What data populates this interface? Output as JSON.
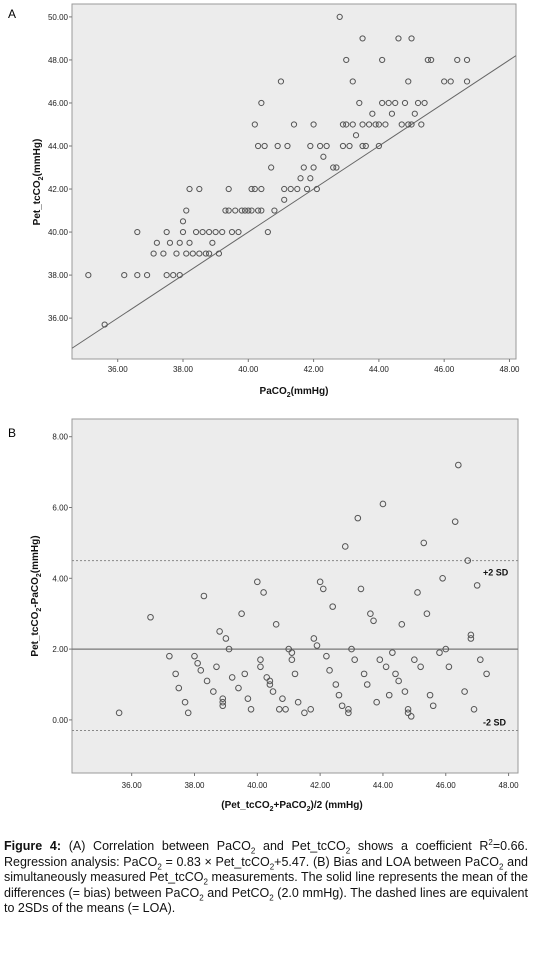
{
  "panel_a_letter": "A",
  "panel_b_letter": "B",
  "caption": {
    "label": "Figure 4:",
    "text": "(A) Correlation between PaCO2 and Pet_tcCO2 shows a coefficient R2=0.66. Regression analysis: PaCO2 = 0.83 × Pet_tcCO2+5.47. (B) Bias and LOA between PaCO2 and simultaneously measured Pet_tcCO2 measurements. The solid line represents the mean of the differences (= bias) between PaCO2 and PetCO2 (2.0 mmHg). The dashed lines are equivalent to 2SDs of the means (= LOA)."
  },
  "chart_data": [
    {
      "type": "scatter",
      "panel": "A",
      "xlabel": "PaCO2(mmHg)",
      "ylabel": "Pet_tcCO2(mmHg)",
      "xlim": [
        34.6,
        48.2
      ],
      "ylim": [
        34.1,
        50.6
      ],
      "xticks": [
        "36.00",
        "38.00",
        "40.00",
        "42.00",
        "44.00",
        "46.00",
        "48.00"
      ],
      "yticks": [
        "36.00",
        "38.00",
        "40.00",
        "42.00",
        "44.00",
        "46.00",
        "48.00",
        "50.00"
      ],
      "identity_line": true,
      "background": "#ececec",
      "marker_color": "#555555",
      "points": [
        [
          35.1,
          38.0
        ],
        [
          35.6,
          35.7
        ],
        [
          36.2,
          38.0
        ],
        [
          36.6,
          38.0
        ],
        [
          36.6,
          40.0
        ],
        [
          36.9,
          38.0
        ],
        [
          37.1,
          39.0
        ],
        [
          37.2,
          39.5
        ],
        [
          37.4,
          39.0
        ],
        [
          37.5,
          38.0
        ],
        [
          37.5,
          40.0
        ],
        [
          37.6,
          39.5
        ],
        [
          37.7,
          38.0
        ],
        [
          37.8,
          39.0
        ],
        [
          37.9,
          39.5
        ],
        [
          38.0,
          40.0
        ],
        [
          38.0,
          40.5
        ],
        [
          38.1,
          39.0
        ],
        [
          38.1,
          41.0
        ],
        [
          38.2,
          42.0
        ],
        [
          38.2,
          39.5
        ],
        [
          38.3,
          39.0
        ],
        [
          38.4,
          40.0
        ],
        [
          38.5,
          39.0
        ],
        [
          38.5,
          42.0
        ],
        [
          38.6,
          40.0
        ],
        [
          38.7,
          39.0
        ],
        [
          38.8,
          40.0
        ],
        [
          38.9,
          39.5
        ],
        [
          39.0,
          40.0
        ],
        [
          39.1,
          39.0
        ],
        [
          39.3,
          41.0
        ],
        [
          39.4,
          42.0
        ],
        [
          39.4,
          41.0
        ],
        [
          39.5,
          40.0
        ],
        [
          39.6,
          41.0
        ],
        [
          39.7,
          40.0
        ],
        [
          39.8,
          41.0
        ],
        [
          39.9,
          41.0
        ],
        [
          40.0,
          41.0
        ],
        [
          40.1,
          42.0
        ],
        [
          40.1,
          41.0
        ],
        [
          40.2,
          45.0
        ],
        [
          40.2,
          42.0
        ],
        [
          40.3,
          44.0
        ],
        [
          40.3,
          41.0
        ],
        [
          40.4,
          46.0
        ],
        [
          40.4,
          42.0
        ],
        [
          40.5,
          44.0
        ],
        [
          40.6,
          40.0
        ],
        [
          40.7,
          43.0
        ],
        [
          40.8,
          41.0
        ],
        [
          40.9,
          44.0
        ],
        [
          41.0,
          47.0
        ],
        [
          41.1,
          41.5
        ],
        [
          41.1,
          42.0
        ],
        [
          41.2,
          44.0
        ],
        [
          41.3,
          42.0
        ],
        [
          41.4,
          45.0
        ],
        [
          41.5,
          42.0
        ],
        [
          41.6,
          42.5
        ],
        [
          41.7,
          43.0
        ],
        [
          41.8,
          42.0
        ],
        [
          41.9,
          44.0
        ],
        [
          42.0,
          45.0
        ],
        [
          42.0,
          43.0
        ],
        [
          42.1,
          42.0
        ],
        [
          42.2,
          44.0
        ],
        [
          42.3,
          43.5
        ],
        [
          42.4,
          44.0
        ],
        [
          42.6,
          43.0
        ],
        [
          42.7,
          43.0
        ],
        [
          42.8,
          50.0
        ],
        [
          42.9,
          44.0
        ],
        [
          43.0,
          48.0
        ],
        [
          43.0,
          45.0
        ],
        [
          43.1,
          44.0
        ],
        [
          43.2,
          47.0
        ],
        [
          43.3,
          44.5
        ],
        [
          43.4,
          46.0
        ],
        [
          43.5,
          49.0
        ],
        [
          43.5,
          45.0
        ],
        [
          43.6,
          44.0
        ],
        [
          43.7,
          45.0
        ],
        [
          43.8,
          45.5
        ],
        [
          43.9,
          45.0
        ],
        [
          44.0,
          44.0
        ],
        [
          44.1,
          46.0
        ],
        [
          44.1,
          48.0
        ],
        [
          44.2,
          45.0
        ],
        [
          44.3,
          46.0
        ],
        [
          44.4,
          45.5
        ],
        [
          44.5,
          46.0
        ],
        [
          44.6,
          49.0
        ],
        [
          44.7,
          45.0
        ],
        [
          44.8,
          46.0
        ],
        [
          44.9,
          47.0
        ],
        [
          44.9,
          45.0
        ],
        [
          45.0,
          49.0
        ],
        [
          45.1,
          45.5
        ],
        [
          45.2,
          46.0
        ],
        [
          45.3,
          45.0
        ],
        [
          45.4,
          46.0
        ],
        [
          45.5,
          48.0
        ],
        [
          45.6,
          48.0
        ],
        [
          46.0,
          47.0
        ],
        [
          46.2,
          47.0
        ],
        [
          46.4,
          48.0
        ],
        [
          46.7,
          48.0
        ],
        [
          46.7,
          47.0
        ],
        [
          43.2,
          45.0
        ],
        [
          44.0,
          45.0
        ],
        [
          41.9,
          42.5
        ],
        [
          39.2,
          40.0
        ],
        [
          38.8,
          39.0
        ],
        [
          37.9,
          38.0
        ],
        [
          42.9,
          45.0
        ],
        [
          45.0,
          45.0
        ],
        [
          43.5,
          44.0
        ],
        [
          40.4,
          41.0
        ]
      ]
    },
    {
      "type": "scatter",
      "panel": "B",
      "xlabel": "(Pet_tcCO2+PaCO2)/2 (mmHg)",
      "ylabel": "Pet_tcCO2-PaCO2(mmHg)",
      "xlim": [
        34.1,
        48.3
      ],
      "ylim": [
        -1.5,
        8.5
      ],
      "xticks": [
        "36.00",
        "38.00",
        "40.00",
        "42.00",
        "44.00",
        "46.00",
        "48.00"
      ],
      "yticks": [
        "0.00",
        "2.00",
        "4.00",
        "6.00",
        "8.00"
      ],
      "bias": 2.0,
      "loa_upper": 4.5,
      "loa_lower": -0.3,
      "loa_upper_label": "+2 SD",
      "loa_lower_label": "-2 SD",
      "background": "#ececec",
      "marker_color": "#555555",
      "points": [
        [
          35.6,
          0.2
        ],
        [
          36.6,
          2.9
        ],
        [
          37.2,
          1.8
        ],
        [
          37.4,
          1.3
        ],
        [
          37.5,
          0.9
        ],
        [
          37.7,
          0.5
        ],
        [
          37.8,
          0.2
        ],
        [
          38.0,
          1.8
        ],
        [
          38.1,
          1.6
        ],
        [
          38.2,
          1.4
        ],
        [
          38.3,
          3.5
        ],
        [
          38.4,
          1.1
        ],
        [
          38.6,
          0.8
        ],
        [
          38.7,
          1.5
        ],
        [
          38.8,
          2.5
        ],
        [
          38.9,
          0.4
        ],
        [
          38.9,
          0.6
        ],
        [
          39.0,
          2.3
        ],
        [
          39.1,
          2.0
        ],
        [
          39.2,
          1.2
        ],
        [
          39.4,
          0.9
        ],
        [
          39.5,
          3.0
        ],
        [
          39.6,
          1.3
        ],
        [
          39.7,
          0.6
        ],
        [
          39.8,
          0.3
        ],
        [
          40.0,
          3.9
        ],
        [
          40.1,
          1.7
        ],
        [
          40.1,
          1.5
        ],
        [
          40.2,
          3.6
        ],
        [
          40.3,
          1.2
        ],
        [
          40.4,
          1.0
        ],
        [
          40.5,
          0.8
        ],
        [
          40.6,
          2.7
        ],
        [
          40.7,
          0.3
        ],
        [
          40.8,
          0.6
        ],
        [
          40.9,
          0.3
        ],
        [
          41.0,
          2.0
        ],
        [
          41.1,
          1.7
        ],
        [
          41.2,
          1.3
        ],
        [
          41.3,
          0.5
        ],
        [
          41.5,
          0.2
        ],
        [
          41.7,
          0.3
        ],
        [
          41.8,
          2.3
        ],
        [
          41.9,
          2.1
        ],
        [
          42.0,
          3.9
        ],
        [
          42.1,
          3.7
        ],
        [
          42.2,
          1.8
        ],
        [
          42.3,
          1.4
        ],
        [
          42.4,
          3.2
        ],
        [
          42.5,
          1.0
        ],
        [
          42.6,
          0.7
        ],
        [
          42.7,
          0.4
        ],
        [
          42.8,
          4.9
        ],
        [
          42.9,
          0.2
        ],
        [
          43.0,
          2.0
        ],
        [
          43.1,
          1.7
        ],
        [
          43.2,
          5.7
        ],
        [
          43.3,
          3.7
        ],
        [
          43.4,
          1.3
        ],
        [
          43.5,
          1.0
        ],
        [
          43.6,
          3.0
        ],
        [
          43.7,
          2.8
        ],
        [
          43.8,
          0.5
        ],
        [
          43.9,
          1.7
        ],
        [
          44.0,
          6.1
        ],
        [
          44.1,
          1.5
        ],
        [
          44.2,
          0.7
        ],
        [
          44.3,
          1.9
        ],
        [
          44.4,
          1.3
        ],
        [
          44.5,
          1.1
        ],
        [
          44.6,
          2.7
        ],
        [
          44.7,
          0.8
        ],
        [
          44.8,
          0.3
        ],
        [
          44.9,
          0.1
        ],
        [
          45.0,
          1.7
        ],
        [
          45.1,
          3.6
        ],
        [
          45.2,
          1.5
        ],
        [
          45.3,
          5.0
        ],
        [
          45.4,
          3.0
        ],
        [
          45.5,
          0.7
        ],
        [
          45.6,
          0.4
        ],
        [
          45.8,
          1.9
        ],
        [
          45.9,
          4.0
        ],
        [
          46.0,
          2.0
        ],
        [
          46.1,
          1.5
        ],
        [
          46.3,
          5.6
        ],
        [
          46.4,
          7.2
        ],
        [
          46.6,
          0.8
        ],
        [
          46.7,
          4.5
        ],
        [
          46.8,
          2.4
        ],
        [
          46.9,
          0.3
        ],
        [
          47.0,
          3.8
        ],
        [
          47.1,
          1.7
        ],
        [
          47.3,
          1.3
        ],
        [
          38.9,
          0.5
        ],
        [
          40.4,
          1.1
        ],
        [
          42.9,
          0.3
        ],
        [
          44.8,
          0.2
        ],
        [
          46.8,
          2.3
        ],
        [
          41.1,
          1.9
        ]
      ]
    }
  ]
}
